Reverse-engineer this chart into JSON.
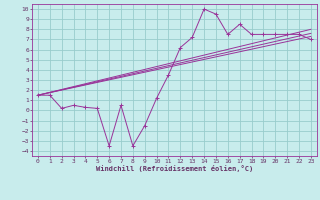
{
  "title": "",
  "xlabel": "Windchill (Refroidissement éolien,°C)",
  "bg_color": "#c8ecec",
  "line_color": "#993399",
  "grid_color": "#99cccc",
  "text_color": "#663366",
  "xlim": [
    -0.5,
    23.5
  ],
  "ylim": [
    -4.5,
    10.5
  ],
  "xticks": [
    0,
    1,
    2,
    3,
    4,
    5,
    6,
    7,
    8,
    9,
    10,
    11,
    12,
    13,
    14,
    15,
    16,
    17,
    18,
    19,
    20,
    21,
    22,
    23
  ],
  "yticks": [
    -4,
    -3,
    -2,
    -1,
    0,
    1,
    2,
    3,
    4,
    5,
    6,
    7,
    8,
    9,
    10
  ],
  "line1_x": [
    0,
    1,
    2,
    3,
    4,
    5,
    6,
    7,
    8,
    9,
    10,
    11,
    12,
    13,
    14,
    15,
    16,
    17,
    18,
    19,
    20,
    21,
    22,
    23
  ],
  "line1_y": [
    1.5,
    1.5,
    0.2,
    0.5,
    0.3,
    0.2,
    -3.5,
    0.5,
    -3.5,
    -1.5,
    1.2,
    3.5,
    6.2,
    7.2,
    10.0,
    9.5,
    7.5,
    8.5,
    7.5,
    7.5,
    7.5,
    7.5,
    7.5,
    7.0
  ],
  "line2_x": [
    0,
    23
  ],
  "line2_y": [
    1.5,
    7.3
  ],
  "line3_x": [
    0,
    23
  ],
  "line3_y": [
    1.5,
    7.6
  ],
  "line4_x": [
    0,
    23
  ],
  "line4_y": [
    1.5,
    8.0
  ]
}
